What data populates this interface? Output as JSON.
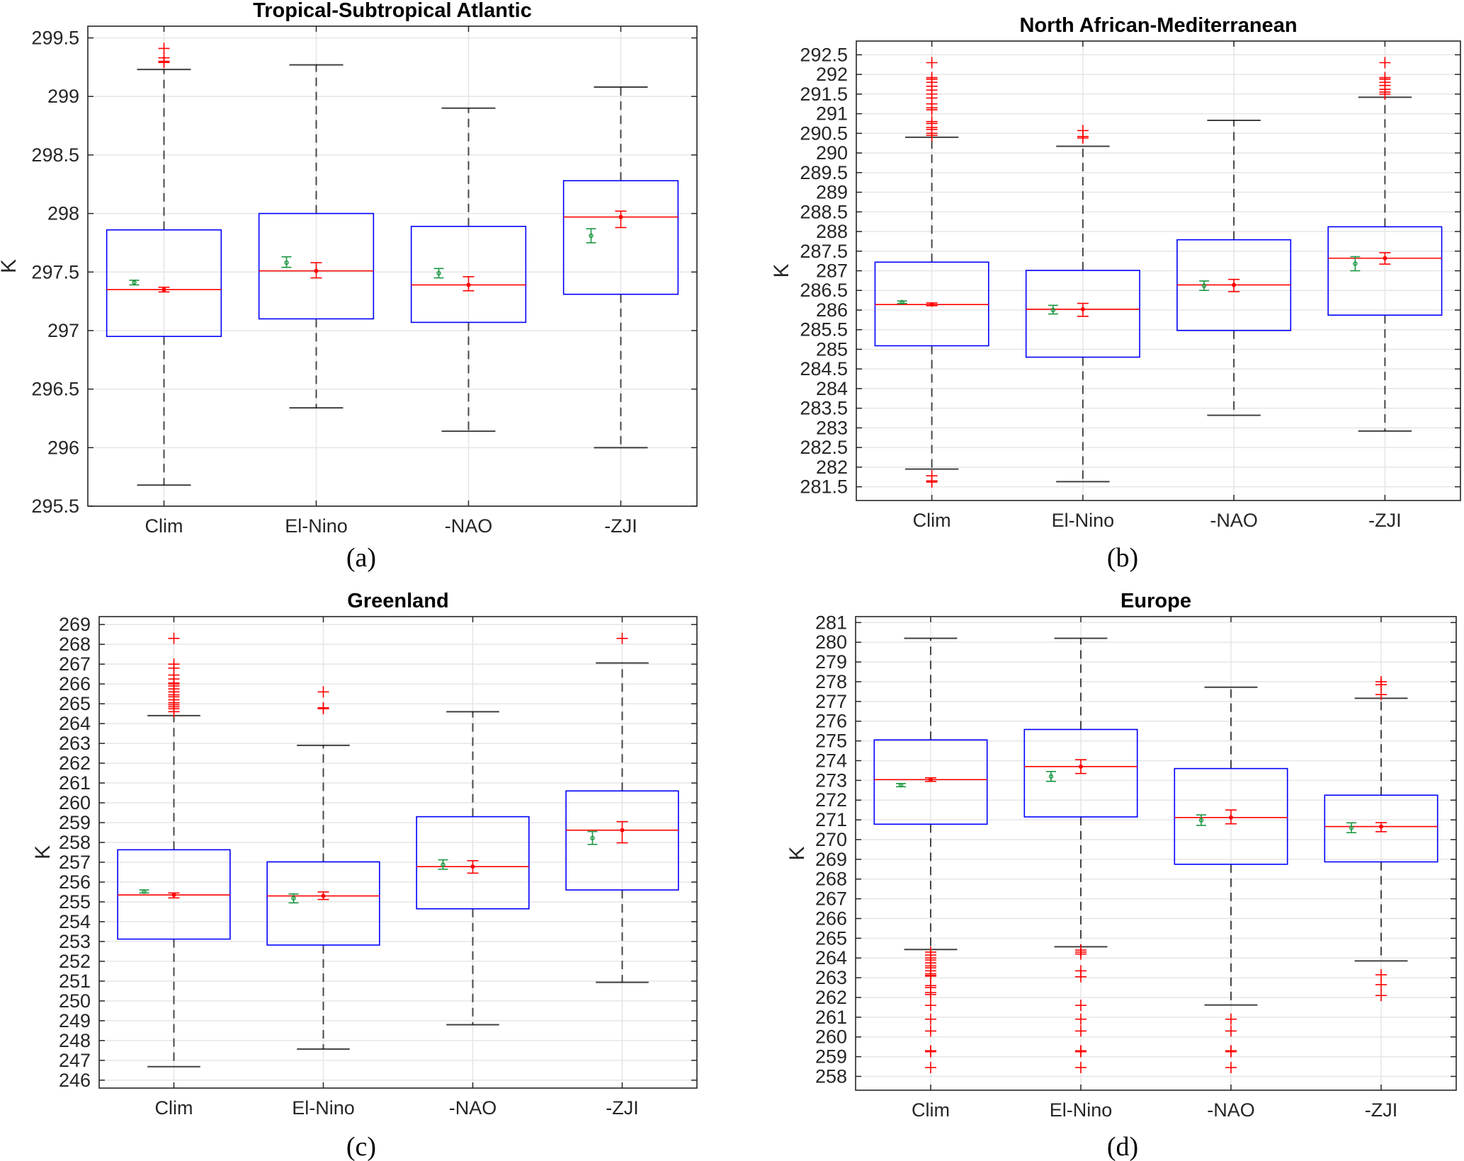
{
  "chart_data": [
    {
      "id": "a",
      "type": "box",
      "title": "Tropical-Subtropical Atlantic",
      "panel_label": "(a)",
      "ylabel": "K",
      "xlabel": "",
      "categories": [
        "Clim",
        "El-Nino",
        "-NAO",
        "-ZJI"
      ],
      "ylim": [
        295.5,
        299.6
      ],
      "yticks": [
        295.5,
        296,
        296.5,
        297,
        297.5,
        298,
        298.5,
        299,
        299.5
      ],
      "ytick_labels": [
        "295.5",
        "296",
        "296.5",
        "297",
        "297.5",
        "298",
        "298.5",
        "299",
        "299.5"
      ],
      "grid": true,
      "boxes": [
        {
          "q1": 296.95,
          "median": 297.35,
          "q3": 297.86,
          "whisker_low": 295.68,
          "whisker_high": 299.23,
          "outliers": [
            299.29,
            299.3,
            299.33,
            299.41
          ],
          "mean_green": 297.41,
          "ci_green": [
            297.39,
            297.43
          ],
          "mean_red": 297.35,
          "ci_red": [
            297.33,
            297.37
          ]
        },
        {
          "q1": 297.1,
          "median": 297.51,
          "q3": 298.0,
          "whisker_low": 296.34,
          "whisker_high": 299.27,
          "outliers": [],
          "mean_green": 297.58,
          "ci_green": [
            297.54,
            297.63
          ],
          "mean_red": 297.51,
          "ci_red": [
            297.45,
            297.58
          ]
        },
        {
          "q1": 297.07,
          "median": 297.39,
          "q3": 297.89,
          "whisker_low": 296.14,
          "whisker_high": 298.9,
          "outliers": [],
          "mean_green": 297.49,
          "ci_green": [
            297.45,
            297.53
          ],
          "mean_red": 297.39,
          "ci_red": [
            297.34,
            297.46
          ]
        },
        {
          "q1": 297.31,
          "median": 297.97,
          "q3": 298.28,
          "whisker_low": 296.0,
          "whisker_high": 299.08,
          "outliers": [],
          "mean_green": 297.81,
          "ci_green": [
            297.75,
            297.87
          ],
          "mean_red": 297.97,
          "ci_red": [
            297.88,
            298.02
          ]
        }
      ]
    },
    {
      "id": "b",
      "type": "box",
      "title": "North African-Mediterranean",
      "panel_label": "(b)",
      "ylabel": "K",
      "xlabel": "",
      "categories": [
        "Clim",
        "El-Nino",
        "-NAO",
        "-ZJI"
      ],
      "ylim": [
        281.15,
        292.85
      ],
      "yticks": [
        281.5,
        282,
        282.5,
        283,
        283.5,
        284,
        284.5,
        285,
        285.5,
        286,
        286.5,
        287,
        287.5,
        288,
        288.5,
        289,
        289.5,
        290,
        290.5,
        291,
        291.5,
        292,
        292.5
      ],
      "ytick_labels": [
        "281.5",
        "282",
        "282.5",
        "283",
        "283.5",
        "284",
        "284.5",
        "285",
        "285.5",
        "286",
        "286.5",
        "287",
        "287.5",
        "288",
        "288.5",
        "289",
        "289.5",
        "290",
        "290.5",
        "291",
        "291.5",
        "292",
        "292.5"
      ],
      "grid": true,
      "boxes": [
        {
          "q1": 285.09,
          "median": 286.14,
          "q3": 287.22,
          "whisker_low": 281.95,
          "whisker_high": 290.4,
          "outliers": [
            290.45,
            290.5,
            290.6,
            290.65,
            290.75,
            290.8,
            291.1,
            291.15,
            291.25,
            291.4,
            291.5,
            291.6,
            291.7,
            291.8,
            291.88,
            291.92,
            292.3,
            281.78,
            281.65,
            281.62
          ],
          "mean_green": 286.2,
          "ci_green": [
            286.17,
            286.23
          ],
          "mean_red": 286.14,
          "ci_red": [
            286.11,
            286.18
          ]
        },
        {
          "q1": 284.8,
          "median": 286.02,
          "q3": 287.01,
          "whisker_low": 281.63,
          "whisker_high": 290.17,
          "outliers": [
            290.38,
            290.42,
            290.57
          ],
          "mean_green": 286.0,
          "ci_green": [
            285.9,
            286.12
          ],
          "mean_red": 286.02,
          "ci_red": [
            285.84,
            286.17
          ]
        },
        {
          "q1": 285.48,
          "median": 286.64,
          "q3": 287.79,
          "whisker_low": 283.32,
          "whisker_high": 290.83,
          "outliers": [],
          "mean_green": 286.62,
          "ci_green": [
            286.5,
            286.74
          ],
          "mean_red": 286.64,
          "ci_red": [
            286.47,
            286.78
          ]
        },
        {
          "q1": 285.87,
          "median": 287.32,
          "q3": 288.12,
          "whisker_low": 282.92,
          "whisker_high": 291.42,
          "outliers": [
            291.5,
            291.55,
            291.62,
            291.72,
            291.8,
            291.88,
            291.92,
            292.3
          ],
          "mean_green": 287.18,
          "ci_green": [
            287.0,
            287.36
          ],
          "mean_red": 287.32,
          "ci_red": [
            287.17,
            287.46
          ]
        }
      ]
    },
    {
      "id": "c",
      "type": "box",
      "title": "Greenland",
      "panel_label": "(c)",
      "ylabel": "K",
      "xlabel": "",
      "categories": [
        "Clim",
        "El-Nino",
        "-NAO",
        "-ZJI"
      ],
      "ylim": [
        245.6,
        269.4
      ],
      "yticks": [
        246,
        247,
        248,
        249,
        250,
        251,
        252,
        253,
        254,
        255,
        256,
        257,
        258,
        259,
        260,
        261,
        262,
        263,
        264,
        265,
        266,
        267,
        268,
        269
      ],
      "ytick_labels": [
        "246",
        "247",
        "248",
        "249",
        "250",
        "251",
        "252",
        "253",
        "254",
        "255",
        "256",
        "257",
        "258",
        "259",
        "260",
        "261",
        "262",
        "263",
        "264",
        "265",
        "266",
        "267",
        "268",
        "269"
      ],
      "grid": true,
      "boxes": [
        {
          "q1": 253.12,
          "median": 255.35,
          "q3": 257.63,
          "whisker_low": 246.68,
          "whisker_high": 264.4,
          "outliers": [
            264.6,
            264.75,
            264.85,
            264.95,
            265.05,
            265.2,
            265.35,
            265.45,
            265.6,
            265.75,
            265.9,
            266.0,
            266.05,
            266.25,
            266.45,
            266.8,
            267.0,
            268.3
          ],
          "mean_green": 255.52,
          "ci_green": [
            255.45,
            255.6
          ],
          "mean_red": 255.35,
          "ci_red": [
            255.2,
            255.45
          ]
        },
        {
          "q1": 252.82,
          "median": 255.3,
          "q3": 257.02,
          "whisker_low": 247.57,
          "whisker_high": 262.9,
          "outliers": [
            264.75,
            264.8,
            265.6
          ],
          "mean_green": 255.18,
          "ci_green": [
            254.95,
            255.4
          ],
          "mean_red": 255.3,
          "ci_red": [
            255.12,
            255.5
          ]
        },
        {
          "q1": 254.65,
          "median": 256.78,
          "q3": 259.3,
          "whisker_low": 248.8,
          "whisker_high": 264.6,
          "outliers": [],
          "mean_green": 256.87,
          "ci_green": [
            256.65,
            257.12
          ],
          "mean_red": 256.78,
          "ci_red": [
            256.45,
            257.08
          ]
        },
        {
          "q1": 255.6,
          "median": 258.62,
          "q3": 260.6,
          "whisker_low": 250.94,
          "whisker_high": 267.06,
          "outliers": [
            268.3
          ],
          "mean_green": 258.22,
          "ci_green": [
            257.9,
            258.55
          ],
          "mean_red": 258.62,
          "ci_red": [
            257.98,
            259.05
          ]
        }
      ]
    },
    {
      "id": "d",
      "type": "box",
      "title": "Europe",
      "panel_label": "(d)",
      "ylabel": "K",
      "xlabel": "",
      "categories": [
        "Clim",
        "El-Nino",
        "-NAO",
        "-ZJI"
      ],
      "ylim": [
        257.3,
        281.3
      ],
      "yticks": [
        258,
        259,
        260,
        261,
        262,
        263,
        264,
        265,
        266,
        267,
        268,
        269,
        270,
        271,
        272,
        273,
        274,
        275,
        276,
        277,
        278,
        279,
        280,
        281
      ],
      "ytick_labels": [
        "258",
        "259",
        "260",
        "261",
        "262",
        "263",
        "264",
        "265",
        "266",
        "267",
        "268",
        "269",
        "270",
        "271",
        "272",
        "273",
        "274",
        "275",
        "276",
        "277",
        "278",
        "279",
        "280",
        "281"
      ],
      "grid": true,
      "boxes": [
        {
          "q1": 270.78,
          "median": 273.04,
          "q3": 275.05,
          "whisker_low": 264.43,
          "whisker_high": 280.2,
          "outliers": [
            264.3,
            264.15,
            264.0,
            263.9,
            263.75,
            263.6,
            263.5,
            263.35,
            263.2,
            263.12,
            263.08,
            262.6,
            262.5,
            262.25,
            262.15,
            261.6,
            260.9,
            260.3,
            259.3,
            259.25,
            258.45
          ],
          "mean_green": 272.76,
          "ci_green": [
            272.68,
            272.84
          ],
          "mean_red": 273.04,
          "ci_red": [
            272.95,
            273.13
          ]
        },
        {
          "q1": 271.15,
          "median": 273.7,
          "q3": 275.58,
          "whisker_low": 264.57,
          "whisker_high": 280.2,
          "outliers": [
            264.4,
            264.3,
            264.2,
            263.35,
            263.05,
            261.6,
            260.9,
            260.3,
            259.3,
            259.25,
            258.45
          ],
          "mean_green": 273.2,
          "ci_green": [
            272.95,
            273.45
          ],
          "mean_red": 273.7,
          "ci_red": [
            273.35,
            274.05
          ]
        },
        {
          "q1": 268.75,
          "median": 271.12,
          "q3": 273.6,
          "whisker_low": 261.62,
          "whisker_high": 277.72,
          "outliers": [
            260.9,
            260.3,
            259.3,
            259.25,
            258.45
          ],
          "mean_green": 270.98,
          "ci_green": [
            270.72,
            271.25
          ],
          "mean_red": 271.12,
          "ci_red": [
            270.8,
            271.5
          ]
        },
        {
          "q1": 268.87,
          "median": 270.66,
          "q3": 272.25,
          "whisker_low": 263.85,
          "whisker_high": 277.16,
          "outliers": [
            277.35,
            277.85,
            278.0,
            263.15,
            262.65,
            262.1
          ],
          "mean_green": 270.6,
          "ci_green": [
            270.35,
            270.85
          ],
          "mean_red": 270.66,
          "ci_red": [
            270.4,
            270.86
          ]
        }
      ]
    }
  ],
  "colors": {
    "box": "#0000ff",
    "median": "#ff0000",
    "whisker": "#000000",
    "outlier": "#ff0000",
    "mean_green": "#1a9641",
    "mean_red": "#ff0000",
    "grid": "#e6e6e6",
    "axis": "#262626"
  }
}
